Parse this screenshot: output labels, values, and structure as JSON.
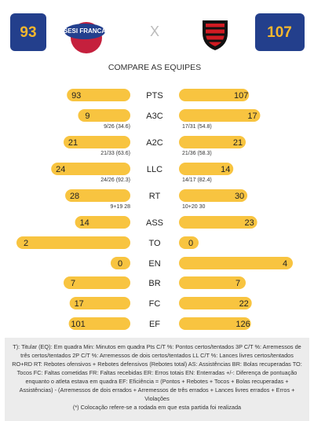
{
  "header": {
    "home_score": 93,
    "away_score": 107,
    "versus": "X",
    "home_logo_text": "SESI FRANCA",
    "section_title": "COMPARE AS EQUIPES"
  },
  "stats": [
    {
      "label": "PTS",
      "home": 93,
      "away": 107
    },
    {
      "label": "A3C",
      "home": 9,
      "away": 17,
      "home_detail": "9/26 (34.6)",
      "away_detail": "17/31 (54.8)"
    },
    {
      "label": "A2C",
      "home": 21,
      "away": 21,
      "home_detail": "21/33 (63.6)",
      "away_detail": "21/36 (58.3)"
    },
    {
      "label": "LLC",
      "home": 24,
      "away": 14,
      "home_detail": "24/26 (92.3)",
      "away_detail": "14/17 (82.4)"
    },
    {
      "label": "RT",
      "home": 28,
      "away": 30,
      "home_detail": "9+19 28",
      "away_detail": "10+20 30"
    },
    {
      "label": "ASS",
      "home": 14,
      "away": 23
    },
    {
      "label": "TO",
      "home": 2,
      "away": 0
    },
    {
      "label": "EN",
      "home": 0,
      "away": 4
    },
    {
      "label": "BR",
      "home": 7,
      "away": 7
    },
    {
      "label": "FC",
      "home": 17,
      "away": 22
    },
    {
      "label": "EF",
      "home": 101,
      "away": 126
    }
  ],
  "footnote": {
    "legend": "T): Titular (EQ): Em quadra Min: Minutos em quadra Pts C/T %: Pontos certos/tentados 3P C/T %: Arremessos de três certos/tentados 2P C/T %: Arremessos de dois certos/tentados LL C/T %: Lances livres certos/tentados RO+RD RT: Rebotes ofensivos + Rebotes defensivos (Rebotes total) AS: Assistências BR: Bolas recuperadas TO: Tocos FC: Faltas cometidas FR: Faltas recebidas ER: Erros totais EN: Enterradas +/-: Diferença de pontuação enquanto o atleta estava em quadra EF: Eficiência = (Pontos + Rebotes + Tocos + Bolas recuperadas + Assistências) - (Arremessos de dois errados + Arremessos de três errados + Lances livres errados + Erros + Violações",
    "ranking_note": "(*) Colocação refere-se a rodada em que esta partida foi realizada"
  }
}
